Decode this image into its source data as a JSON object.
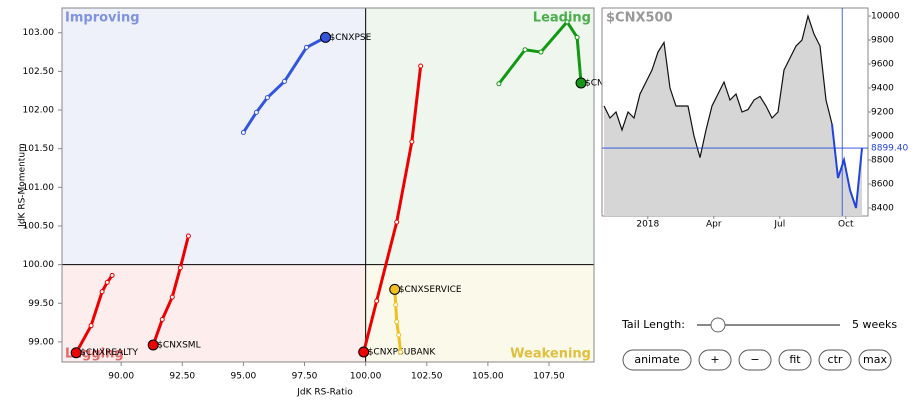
{
  "chart_data": [
    {
      "type": "scatter",
      "x_label": "JdK RS-Ratio",
      "y_label": "JdK RS-Momentum",
      "quadrants": [
        {
          "label": "Improving",
          "color": "#7f93e0",
          "fill": "#eef0fa"
        },
        {
          "label": "Leading",
          "color": "#4cae4c",
          "fill": "#eef6ee"
        },
        {
          "label": "Lagging",
          "color": "#e06a6a",
          "fill": "#fdeded"
        },
        {
          "label": "Weakening",
          "color": "#e0c040",
          "fill": "#fbf9ea"
        }
      ],
      "center": [
        100,
        100
      ],
      "xlim": [
        87.58,
        109.34
      ],
      "ylim": [
        98.74,
        103.32
      ],
      "xticks": [
        {
          "value": 90,
          "label": "90.00"
        },
        {
          "value": 92.5,
          "label": "92.50"
        },
        {
          "value": 95,
          "label": "95.00"
        },
        {
          "value": 97.5,
          "label": "97.50"
        },
        {
          "value": 100,
          "label": "100.00"
        },
        {
          "value": 102.5,
          "label": "102.50"
        },
        {
          "value": 105,
          "label": "105.00"
        },
        {
          "value": 107.5,
          "label": "107.50"
        }
      ],
      "yticks": [
        {
          "value": 99,
          "label": "99.00"
        },
        {
          "value": 99.5,
          "label": "99.50"
        },
        {
          "value": 100,
          "label": "100.00"
        },
        {
          "value": 100.5,
          "label": "100.50"
        },
        {
          "value": 101,
          "label": "101.00"
        },
        {
          "value": 101.5,
          "label": "101.50"
        },
        {
          "value": 102,
          "label": "102.00"
        },
        {
          "value": 102.5,
          "label": "102.50"
        },
        {
          "value": 103,
          "label": "103.00"
        }
      ],
      "series": [
        {
          "name": "$CNXPSE",
          "color": "#3355dd",
          "x": [
            95.0,
            95.53,
            95.98,
            96.68,
            97.58,
            98.36
          ],
          "values": [
            101.71,
            101.97,
            102.16,
            102.37,
            102.81,
            102.94
          ]
        },
        {
          "name": "$CNXPHARMA",
          "color": "#119911",
          "x": [
            105.45,
            106.52,
            107.17,
            108.24,
            108.65,
            108.81
          ],
          "values": [
            102.34,
            102.78,
            102.75,
            103.14,
            102.94,
            102.35
          ]
        },
        {
          "name": "$CNXREALTY",
          "color": "#ee0000",
          "x": [
            89.63,
            89.43,
            89.22,
            88.77,
            88.16
          ],
          "values": [
            99.86,
            99.77,
            99.65,
            99.21,
            98.86
          ]
        },
        {
          "name": "$CNXSML",
          "color": "#ee0000",
          "x": [
            92.75,
            92.42,
            92.09,
            91.68,
            91.31
          ],
          "values": [
            100.37,
            99.96,
            99.58,
            99.29,
            98.96
          ]
        },
        {
          "name": "$CNXPSUBANK",
          "color": "#ee0000",
          "x": [
            102.25,
            101.89,
            101.27,
            100.45,
            99.92
          ],
          "values": [
            102.57,
            101.59,
            100.55,
            99.53,
            98.87
          ]
        },
        {
          "name": "$CNXSERVICE",
          "color": "#f0c020",
          "x": [
            101.43,
            101.35,
            101.27,
            101.23,
            101.19
          ],
          "values": [
            98.87,
            99.09,
            99.26,
            99.48,
            99.68
          ]
        }
      ]
    },
    {
      "type": "line",
      "title": "$CNX500",
      "xlim": [
        0,
        44
      ],
      "ylim": [
        8333,
        10067
      ],
      "xticks": [
        {
          "value": 7.3,
          "label": "2018"
        },
        {
          "value": 18.3,
          "label": "Apr"
        },
        {
          "value": 29.3,
          "label": "Jul"
        },
        {
          "value": 40.3,
          "label": "Oct"
        }
      ],
      "yticks": [
        8400,
        8600,
        8800,
        9000,
        9200,
        9400,
        9600,
        9800,
        10000
      ],
      "last_price": {
        "value": 8899.4,
        "label": "8899.40"
      },
      "series": [
        {
          "color": "#111111",
          "values": [
            9250,
            9150,
            9200,
            9050,
            9200,
            9150,
            9350,
            9450,
            9550,
            9700,
            9780,
            9400,
            9250,
            9250,
            9250,
            9000,
            8820,
            9050,
            9250,
            9350,
            9450,
            9300,
            9350,
            9200,
            9220,
            9300,
            9330,
            9250,
            9150,
            9200,
            9550,
            9650,
            9750,
            9800,
            10000,
            9850,
            9750,
            9300,
            9100,
            null,
            null,
            null,
            null,
            null
          ]
        },
        {
          "color": "#2244dd",
          "values": [
            null,
            null,
            null,
            null,
            null,
            null,
            null,
            null,
            null,
            null,
            null,
            null,
            null,
            null,
            null,
            null,
            null,
            null,
            null,
            null,
            null,
            null,
            null,
            null,
            null,
            null,
            null,
            null,
            null,
            null,
            null,
            null,
            null,
            null,
            null,
            null,
            null,
            null,
            9100,
            8650,
            8800,
            8550,
            8400,
            8899.4
          ]
        }
      ]
    }
  ],
  "controls": {
    "tail_label": "Tail Length:",
    "tail_value": "5 weeks",
    "buttons": [
      "animate",
      "+",
      "−",
      "fit",
      "ctr",
      "max"
    ]
  }
}
